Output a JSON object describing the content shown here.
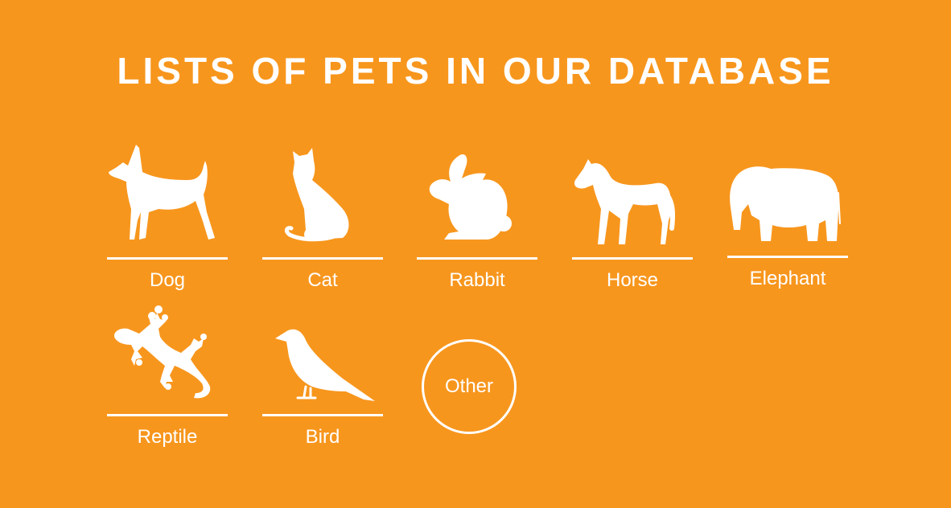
{
  "header": {
    "title": "LISTS OF PETS IN OUR DATABASE"
  },
  "pets": [
    {
      "label": "Dog",
      "icon": "dog-icon"
    },
    {
      "label": "Cat",
      "icon": "cat-icon"
    },
    {
      "label": "Rabbit",
      "icon": "rabbit-icon"
    },
    {
      "label": "Horse",
      "icon": "horse-icon"
    },
    {
      "label": "Elephant",
      "icon": "elephant-icon"
    },
    {
      "label": "Reptile",
      "icon": "reptile-icon"
    },
    {
      "label": "Bird",
      "icon": "bird-icon"
    }
  ],
  "other": {
    "label": "Other"
  },
  "colors": {
    "background": "#f7961d",
    "foreground": "#ffffff"
  }
}
